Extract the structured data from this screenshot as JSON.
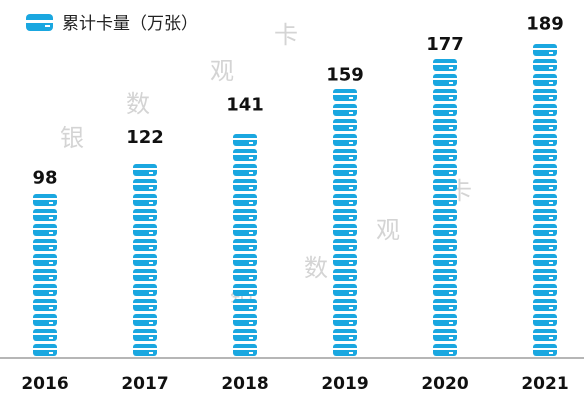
{
  "chart_data": {
    "type": "bar",
    "categories": [
      "2016",
      "2017",
      "2018",
      "2019",
      "2020",
      "2021"
    ],
    "series": [
      {
        "name": "累计卡量（万张）",
        "values": [
          98,
          122,
          141,
          159,
          177,
          189
        ]
      }
    ],
    "data_labels": [
      "98",
      "122",
      "141",
      "159",
      "177",
      "189"
    ],
    "ylim": [
      0,
      200
    ],
    "grid": false,
    "legend": "top-left",
    "color": "#1aa7e0"
  },
  "watermarks": [
    "银",
    "数",
    "观",
    "卡",
    "银",
    "数",
    "观",
    "卡"
  ]
}
